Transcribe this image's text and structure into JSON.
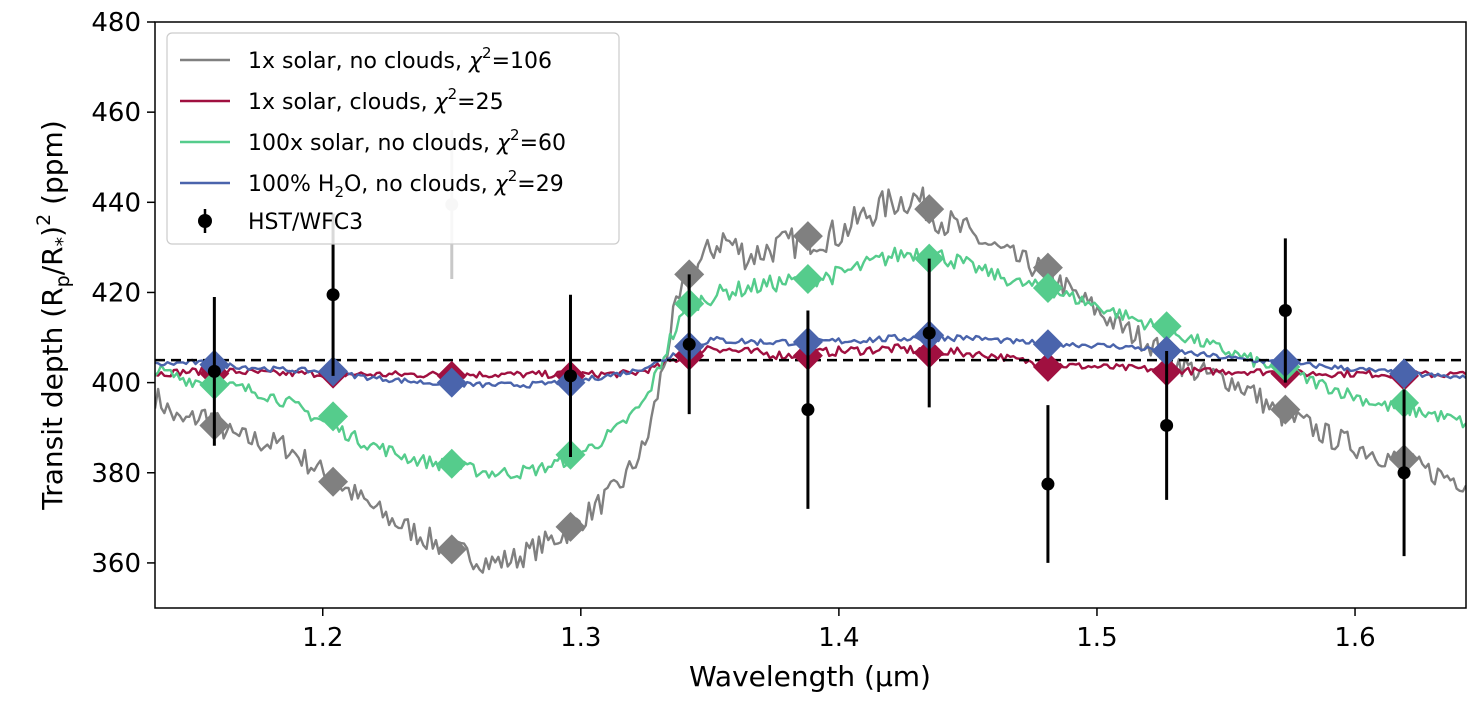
{
  "chart_data": {
    "type": "line",
    "title": "",
    "xlabel": "Wavelength (μm)",
    "ylabel_parts": {
      "prefix": "Transit depth (R",
      "sub1": "p",
      "mid": "/R",
      "sub2": "*",
      "close": ")",
      "sup": "2",
      "suffix": " (ppm)"
    },
    "xlim": [
      1.135,
      1.643
    ],
    "ylim": [
      350,
      480
    ],
    "xticks": [
      "1.2",
      "1.3",
      "1.4",
      "1.5",
      "1.6"
    ],
    "xtick_values": [
      1.2,
      1.3,
      1.4,
      1.5,
      1.6
    ],
    "yticks": [
      "360",
      "380",
      "400",
      "420",
      "440",
      "460",
      "480"
    ],
    "ytick_values": [
      360,
      380,
      400,
      420,
      440,
      460,
      480
    ],
    "grid": false,
    "legend_position": "top-left",
    "reference_line": {
      "y": 405,
      "style": "dashed",
      "color": "#000000"
    },
    "series": [
      {
        "key": "solar_noclouds",
        "name_parts": [
          "1x solar, no clouds, ",
          "χ",
          "2",
          "=106"
        ],
        "color": "#808080",
        "curve_x": [
          1.135,
          1.145,
          1.155,
          1.165,
          1.175,
          1.185,
          1.195,
          1.205,
          1.215,
          1.225,
          1.235,
          1.245,
          1.255,
          1.265,
          1.275,
          1.285,
          1.295,
          1.305,
          1.315,
          1.325,
          1.33,
          1.335,
          1.34,
          1.345,
          1.355,
          1.365,
          1.375,
          1.39,
          1.4,
          1.41,
          1.42,
          1.43,
          1.44,
          1.45,
          1.46,
          1.47,
          1.48,
          1.49,
          1.5,
          1.51,
          1.52,
          1.53,
          1.54,
          1.55,
          1.56,
          1.57,
          1.58,
          1.59,
          1.6,
          1.61,
          1.62,
          1.63,
          1.643
        ],
        "curve_y": [
          397,
          391,
          393,
          388,
          387,
          386,
          382,
          378,
          374,
          370,
          367,
          364,
          362,
          360,
          361,
          364,
          367,
          372,
          377,
          386,
          398,
          412,
          421,
          426,
          432,
          428,
          430,
          432,
          433,
          437,
          440,
          441,
          436,
          433,
          430,
          427,
          425,
          420,
          416,
          412,
          409,
          405,
          402,
          401,
          398,
          393,
          391,
          388,
          386,
          384,
          382,
          380,
          378
        ],
        "markers_x": [
          1.158,
          1.204,
          1.25,
          1.296,
          1.342,
          1.388,
          1.435,
          1.481,
          1.527,
          1.573,
          1.619
        ],
        "markers_y": [
          390.5,
          378,
          363,
          368,
          424,
          432.5,
          438.5,
          425.5,
          407,
          394,
          383
        ]
      },
      {
        "key": "solar_clouds",
        "name_parts": [
          "1x solar, clouds, ",
          "χ",
          "2",
          "=25"
        ],
        "color": "#a01040",
        "curve_x": [
          1.135,
          1.15,
          1.165,
          1.18,
          1.2,
          1.22,
          1.24,
          1.26,
          1.28,
          1.3,
          1.32,
          1.33,
          1.34,
          1.35,
          1.36,
          1.38,
          1.4,
          1.42,
          1.44,
          1.46,
          1.48,
          1.5,
          1.52,
          1.54,
          1.56,
          1.58,
          1.6,
          1.62,
          1.643
        ],
        "curve_y": [
          402,
          402.5,
          402.5,
          402,
          402,
          401.8,
          401.8,
          401.8,
          401.8,
          401.8,
          402,
          403.5,
          406,
          408,
          407,
          406,
          407,
          407.5,
          407,
          406,
          404,
          403.5,
          403,
          402.5,
          402.5,
          402,
          402,
          401.8,
          401.8
        ],
        "markers_x": [
          1.158,
          1.204,
          1.25,
          1.296,
          1.342,
          1.388,
          1.435,
          1.481,
          1.527,
          1.573,
          1.619
        ],
        "markers_y": [
          402,
          402,
          401.5,
          401.5,
          406,
          406,
          406.5,
          403.5,
          402.5,
          402,
          401.5
        ]
      },
      {
        "key": "solar100_noclouds",
        "name_parts": [
          "100x solar, no clouds, ",
          "χ",
          "2",
          "=60"
        ],
        "color": "#55cc8c",
        "curve_x": [
          1.135,
          1.145,
          1.155,
          1.165,
          1.175,
          1.185,
          1.195,
          1.205,
          1.215,
          1.225,
          1.235,
          1.245,
          1.255,
          1.265,
          1.275,
          1.285,
          1.295,
          1.305,
          1.315,
          1.325,
          1.33,
          1.335,
          1.34,
          1.345,
          1.355,
          1.365,
          1.375,
          1.39,
          1.4,
          1.41,
          1.42,
          1.43,
          1.44,
          1.45,
          1.46,
          1.47,
          1.48,
          1.49,
          1.5,
          1.51,
          1.52,
          1.53,
          1.54,
          1.55,
          1.56,
          1.57,
          1.58,
          1.59,
          1.6,
          1.61,
          1.62,
          1.63,
          1.643
        ],
        "curve_y": [
          403,
          401,
          400,
          399,
          398,
          396,
          393,
          390,
          387,
          385,
          383,
          382,
          381,
          380,
          380,
          381,
          383,
          386,
          390,
          396,
          403,
          410,
          415,
          418,
          420,
          421,
          422,
          423,
          424,
          426,
          428,
          429,
          428,
          426,
          424,
          422,
          421,
          419,
          417,
          415,
          413,
          411,
          409,
          407,
          405,
          403,
          401,
          399,
          397,
          395,
          394,
          393,
          391
        ],
        "markers_x": [
          1.158,
          1.204,
          1.25,
          1.296,
          1.342,
          1.388,
          1.435,
          1.481,
          1.527,
          1.573,
          1.619
        ],
        "markers_y": [
          399.5,
          392.5,
          382,
          384,
          417.5,
          423,
          427.5,
          421,
          412.5,
          403.5,
          395.5
        ]
      },
      {
        "key": "h2o_noclouds",
        "name_parts": [
          "100% H",
          "2",
          "O, no clouds, ",
          "χ",
          "2",
          "=29"
        ],
        "color": "#4a64ac",
        "curve_x": [
          1.135,
          1.15,
          1.16,
          1.17,
          1.18,
          1.2,
          1.22,
          1.24,
          1.26,
          1.28,
          1.3,
          1.32,
          1.33,
          1.34,
          1.35,
          1.37,
          1.39,
          1.41,
          1.43,
          1.45,
          1.47,
          1.49,
          1.51,
          1.53,
          1.55,
          1.57,
          1.59,
          1.61,
          1.62,
          1.643
        ],
        "curve_y": [
          404,
          404.5,
          404,
          403.5,
          403,
          402.5,
          401,
          400,
          399.5,
          399.5,
          400.5,
          402.5,
          404.5,
          407.5,
          409.5,
          409,
          409,
          409.5,
          410,
          410,
          409,
          408.5,
          408,
          407,
          405.5,
          404.5,
          403.5,
          402.5,
          402,
          401
        ],
        "markers_x": [
          1.158,
          1.204,
          1.25,
          1.296,
          1.342,
          1.388,
          1.435,
          1.481,
          1.527,
          1.573,
          1.619
        ],
        "markers_y": [
          404,
          402.5,
          400,
          400,
          408,
          409,
          410.5,
          408.5,
          407,
          404.5,
          402
        ]
      }
    ],
    "observations": {
      "name": "HST/WFC3",
      "color": "#000000",
      "x": [
        1.158,
        1.204,
        1.25,
        1.296,
        1.342,
        1.388,
        1.435,
        1.481,
        1.527,
        1.573,
        1.619
      ],
      "y": [
        402.5,
        419.5,
        439.5,
        401.5,
        408.5,
        394,
        411,
        377.5,
        390.5,
        416,
        380
      ],
      "err": [
        16.5,
        18,
        16.5,
        18,
        15.5,
        22,
        16.5,
        17.5,
        16.5,
        16,
        18.5
      ],
      "faded_index": 2,
      "faded_color": "#c8c8c8"
    }
  }
}
